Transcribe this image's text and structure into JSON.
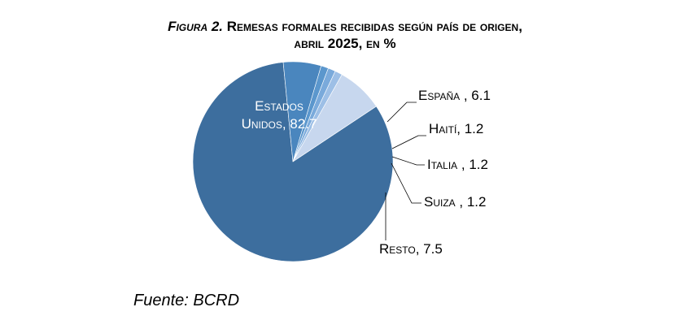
{
  "header": {
    "figure_label": "Figura 2.",
    "title_line1": "Remesas formales recibidas según país de origen,",
    "title_line2": "abril 2025, en %"
  },
  "chart_data": {
    "type": "pie",
    "title": "Figura 2. Remesas formales recibidas según país de origen, abril 2025, en %",
    "categories": [
      "Estados Unidos",
      "España",
      "Haití",
      "Italia",
      "Suiza",
      "Resto"
    ],
    "values": [
      82.7,
      6.1,
      1.2,
      1.2,
      1.2,
      7.5
    ],
    "labels": [
      "Estados Unidos, 82.7",
      "España , 6.1",
      "Haití, 1.2",
      "Italia , 1.2",
      "Suiza , 1.2",
      "Resto, 7.5"
    ],
    "colors": [
      "#3D6E9E",
      "#4A86BE",
      "#5B97CD",
      "#7AAADB",
      "#9DBFE6",
      "#C7D7EE"
    ],
    "label_colors": [
      "#FFFFFF",
      "#000000",
      "#000000",
      "#000000",
      "#000000",
      "#000000"
    ],
    "label_placement": [
      "inside",
      "outside",
      "outside",
      "outside",
      "outside",
      "outside"
    ]
  },
  "footer": {
    "source": "Fuente: BCRD"
  }
}
